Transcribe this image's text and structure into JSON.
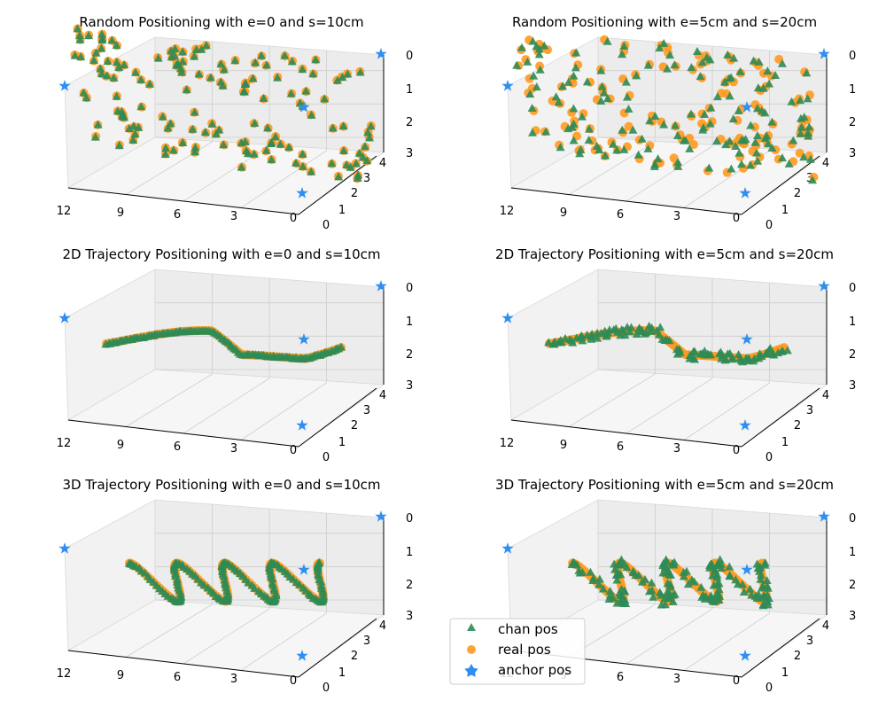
{
  "colors": {
    "chan": "#2e8b57",
    "real": "#ff9a1f",
    "anchor": "#2f8ff0"
  },
  "legend": {
    "chan": "chan pos",
    "real": "real pos",
    "anchor": "anchor pos",
    "placement": "lower-center"
  },
  "chart_data": [
    {
      "type": "scatter3d",
      "title": "Random Positioning with e=0 and s=10cm",
      "pattern": "random",
      "error_cm": 0,
      "step_cm": 10,
      "x_ticks": [
        "12",
        "9",
        "6",
        "3",
        "0"
      ],
      "y_ticks": [
        "0",
        "1",
        "2",
        "3",
        "4"
      ],
      "z_ticks": [
        "0",
        "1",
        "2",
        "3"
      ],
      "xlim": [
        0,
        12
      ],
      "ylim": [
        0,
        4
      ],
      "zlim": [
        0,
        3
      ],
      "z_inverted": true,
      "anchors": [
        [
          12,
          0,
          1
        ],
        [
          0,
          4,
          0
        ],
        [
          0,
          0,
          3
        ],
        [
          0,
          0,
          1
        ]
      ]
    },
    {
      "type": "scatter3d",
      "title": "Random Positioning with e=5cm and s=20cm",
      "pattern": "random",
      "error_cm": 5,
      "step_cm": 20,
      "x_ticks": [
        "12",
        "9",
        "6",
        "3",
        "0"
      ],
      "y_ticks": [
        "0",
        "1",
        "2",
        "3",
        "4"
      ],
      "z_ticks": [
        "0",
        "1",
        "2",
        "3"
      ],
      "xlim": [
        0,
        12
      ],
      "ylim": [
        0,
        4
      ],
      "zlim": [
        0,
        3
      ],
      "z_inverted": true,
      "anchors": [
        [
          12,
          0,
          1
        ],
        [
          0,
          4,
          0
        ],
        [
          0,
          0,
          3
        ],
        [
          0,
          0,
          1
        ]
      ]
    },
    {
      "type": "scatter3d",
      "title": "2D Trajectory Positioning with e=0 and s=10cm",
      "pattern": "trajectory2d",
      "error_cm": 0,
      "step_cm": 10,
      "x_ticks": [
        "12",
        "9",
        "6",
        "3",
        "0"
      ],
      "y_ticks": [
        "0",
        "1",
        "2",
        "3",
        "4"
      ],
      "z_ticks": [
        "0",
        "1",
        "2",
        "3"
      ],
      "xlim": [
        0,
        12
      ],
      "ylim": [
        0,
        4
      ],
      "zlim": [
        0,
        3
      ],
      "z_inverted": true,
      "anchors": [
        [
          12,
          0,
          1
        ],
        [
          0,
          4,
          0
        ],
        [
          0,
          0,
          3
        ],
        [
          0,
          0,
          1
        ]
      ]
    },
    {
      "type": "scatter3d",
      "title": "2D Trajectory Positioning with e=5cm and s=20cm",
      "pattern": "trajectory2d",
      "error_cm": 5,
      "step_cm": 20,
      "x_ticks": [
        "12",
        "9",
        "6",
        "3",
        "0"
      ],
      "y_ticks": [
        "0",
        "1",
        "2",
        "3",
        "4"
      ],
      "z_ticks": [
        "0",
        "1",
        "2",
        "3"
      ],
      "xlim": [
        0,
        12
      ],
      "ylim": [
        0,
        4
      ],
      "zlim": [
        0,
        3
      ],
      "z_inverted": true,
      "anchors": [
        [
          12,
          0,
          1
        ],
        [
          0,
          4,
          0
        ],
        [
          0,
          0,
          3
        ],
        [
          0,
          0,
          1
        ]
      ]
    },
    {
      "type": "scatter3d",
      "title": "3D Trajectory Positioning with e=0 and s=10cm",
      "pattern": "trajectory3d",
      "error_cm": 0,
      "step_cm": 10,
      "x_ticks": [
        "12",
        "9",
        "6",
        "3",
        "0"
      ],
      "y_ticks": [
        "0",
        "1",
        "2",
        "3",
        "4"
      ],
      "z_ticks": [
        "0",
        "1",
        "2",
        "3"
      ],
      "xlim": [
        0,
        12
      ],
      "ylim": [
        0,
        4
      ],
      "zlim": [
        0,
        3
      ],
      "z_inverted": true,
      "anchors": [
        [
          12,
          0,
          1
        ],
        [
          0,
          4,
          0
        ],
        [
          0,
          0,
          3
        ],
        [
          0,
          0,
          1
        ]
      ]
    },
    {
      "type": "scatter3d",
      "title": "3D Trajectory Positioning with e=5cm and s=20cm",
      "pattern": "trajectory3d",
      "error_cm": 5,
      "step_cm": 20,
      "x_ticks": [
        "12",
        "9",
        "6",
        "3",
        "0"
      ],
      "y_ticks": [
        "0",
        "1",
        "2",
        "3",
        "4"
      ],
      "z_ticks": [
        "0",
        "1",
        "2",
        "3"
      ],
      "xlim": [
        0,
        12
      ],
      "ylim": [
        0,
        4
      ],
      "zlim": [
        0,
        3
      ],
      "z_inverted": true,
      "anchors": [
        [
          12,
          0,
          1
        ],
        [
          0,
          4,
          0
        ],
        [
          0,
          0,
          3
        ],
        [
          0,
          0,
          1
        ]
      ]
    }
  ]
}
